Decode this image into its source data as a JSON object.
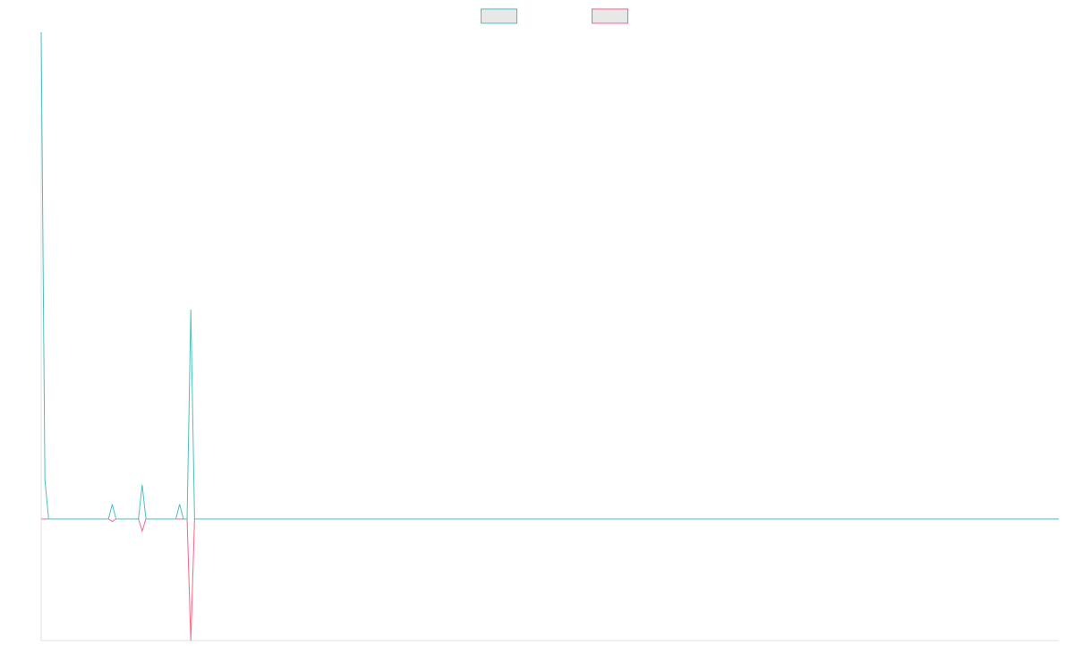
{
  "chart_data": {
    "type": "line",
    "x": [
      0,
      1,
      2,
      18,
      19,
      20,
      26,
      27,
      28,
      36,
      37,
      38,
      39,
      40,
      41,
      272
    ],
    "xlim": [
      0,
      272
    ],
    "ylim": [
      -25,
      100
    ],
    "legend": "top",
    "series": [
      {
        "color": "#ff6384",
        "values": [
          0,
          0,
          0,
          0,
          -0.5,
          0,
          0,
          -2.5,
          0,
          0,
          0,
          0,
          0,
          -25,
          0,
          0
        ]
      },
      {
        "color": "#4bc0c0",
        "values": [
          100,
          8,
          0,
          0,
          3,
          0,
          0,
          7,
          0,
          0,
          3,
          0,
          0,
          43,
          0,
          0
        ]
      }
    ]
  }
}
